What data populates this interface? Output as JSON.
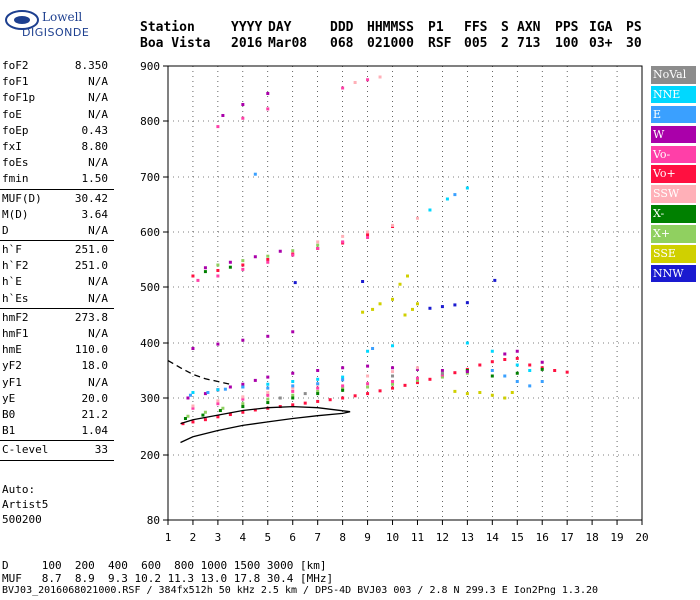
{
  "logo": {
    "line1": "Lowell",
    "line2": "DIGISONDE"
  },
  "header": {
    "labels": [
      "Station",
      "YYYY",
      "DAY",
      "DDD",
      "HHMMSS",
      "P1",
      "FFS",
      "S",
      "AXN",
      "PPS",
      "IGA",
      "PS"
    ],
    "values": [
      "Boa Vista",
      "2016",
      "Mar08",
      "068",
      "021000",
      "RSF",
      "005",
      "2",
      "713",
      "100",
      "03+",
      "30"
    ]
  },
  "params": {
    "group1": [
      {
        "name": "foF2",
        "value": "8.350"
      },
      {
        "name": "foF1",
        "value": "N/A"
      },
      {
        "name": "foF1p",
        "value": "N/A"
      },
      {
        "name": "foE",
        "value": "N/A"
      },
      {
        "name": "foEp",
        "value": "0.43"
      },
      {
        "name": "fxI",
        "value": "8.80"
      },
      {
        "name": "foEs",
        "value": "N/A"
      },
      {
        "name": "fmin",
        "value": "1.50"
      }
    ],
    "group2": [
      {
        "name": "MUF(D)",
        "value": "30.42"
      },
      {
        "name": "M(D)",
        "value": "3.64"
      },
      {
        "name": "D",
        "value": "N/A"
      }
    ],
    "group3": [
      {
        "name": "h`F",
        "value": "251.0"
      },
      {
        "name": "h`F2",
        "value": "251.0"
      },
      {
        "name": "h`E",
        "value": "N/A"
      },
      {
        "name": "h`Es",
        "value": "N/A"
      }
    ],
    "group4": [
      {
        "name": "hmF2",
        "value": "273.8"
      },
      {
        "name": "hmF1",
        "value": "N/A"
      },
      {
        "name": "hmE",
        "value": "110.0"
      },
      {
        "name": "yF2",
        "value": "18.0"
      },
      {
        "name": "yF1",
        "value": "N/A"
      },
      {
        "name": "yE",
        "value": "20.0"
      },
      {
        "name": "B0",
        "value": "21.2"
      },
      {
        "name": "B1",
        "value": "1.04"
      }
    ],
    "group5": [
      {
        "name": "C-level",
        "value": "33"
      }
    ]
  },
  "auto": {
    "line1": "Auto:",
    "line2": "Artist5",
    "line3": "500200"
  },
  "legend": [
    {
      "label": "NoVal",
      "color": "#8c8c8c"
    },
    {
      "label": "NNE",
      "color": "#00d8ff"
    },
    {
      "label": "E",
      "color": "#3aa0ff"
    },
    {
      "label": "W",
      "color": "#aa00aa"
    },
    {
      "label": "Vo-",
      "color": "#ff3fa8"
    },
    {
      "label": "Vo+",
      "color": "#ff1040"
    },
    {
      "label": "SSW",
      "color": "#ffb0b8"
    },
    {
      "label": "X-",
      "color": "#008000"
    },
    {
      "label": "X+",
      "color": "#90d060"
    },
    {
      "label": "SSE",
      "color": "#d0d000"
    },
    {
      "label": "NNW",
      "color": "#1a1ad0"
    }
  ],
  "footer": {
    "d_line": "D     100  200  400  600  800 1000 1500 3000 [km]",
    "muf_line": "MUF   8.7  8.9  9.3 10.2 11.3 13.0 17.8 30.4 [MHz]",
    "info_line": "BVJ03_2016068021000.RSF / 384fx512h 50 kHz 2.5 km / DPS-4D BVJ03 003 / 2.8 N 299.3 E Ion2Png 1.3.20"
  },
  "chart_data": {
    "type": "scatter",
    "title": "",
    "xlabel": "",
    "ylabel": "",
    "xlim": [
      1,
      20
    ],
    "ylim": [
      80,
      900
    ],
    "x_ticks": [
      1,
      2,
      3,
      4,
      5,
      6,
      7,
      8,
      9,
      10,
      11,
      12,
      13,
      14,
      15,
      16,
      17,
      18,
      19,
      20
    ],
    "y_ticks": [
      80,
      200,
      300,
      400,
      500,
      600,
      700,
      800,
      900
    ],
    "grid": true,
    "legend_position": "right",
    "series": [
      {
        "name": "Vo+",
        "color": "#ff1040",
        "points": [
          [
            1.6,
            255
          ],
          [
            2,
            258
          ],
          [
            2.5,
            262
          ],
          [
            3,
            267
          ],
          [
            3.5,
            271
          ],
          [
            4,
            275
          ],
          [
            4.5,
            279
          ],
          [
            5,
            282
          ],
          [
            5.5,
            285
          ],
          [
            6,
            288
          ],
          [
            6.5,
            291
          ],
          [
            7,
            294
          ],
          [
            7.5,
            297
          ],
          [
            8,
            300
          ],
          [
            8.5,
            304
          ],
          [
            9,
            308
          ],
          [
            9.5,
            313
          ],
          [
            10,
            318
          ],
          [
            10.5,
            323
          ],
          [
            11,
            328
          ],
          [
            11.5,
            334
          ],
          [
            12,
            340
          ],
          [
            12.5,
            346
          ],
          [
            13,
            352
          ],
          [
            13.5,
            360
          ],
          [
            14,
            366
          ],
          [
            14.5,
            370
          ],
          [
            15,
            372
          ],
          [
            15.5,
            360
          ],
          [
            16,
            355
          ],
          [
            16.5,
            350
          ],
          [
            17,
            347
          ],
          [
            2,
            520
          ],
          [
            3,
            530
          ],
          [
            4,
            540
          ],
          [
            5,
            550
          ],
          [
            6,
            560
          ],
          [
            7,
            570
          ],
          [
            8,
            580
          ],
          [
            9,
            595
          ],
          [
            10,
            610
          ]
        ]
      },
      {
        "name": "X+",
        "color": "#90d060",
        "points": [
          [
            1.8,
            268
          ],
          [
            2.5,
            275
          ],
          [
            3.2,
            282
          ],
          [
            4,
            290
          ],
          [
            5,
            298
          ],
          [
            6,
            305
          ],
          [
            7,
            312
          ],
          [
            8,
            318
          ],
          [
            9,
            320
          ],
          [
            10,
            325
          ],
          [
            11,
            332
          ],
          [
            12,
            338
          ],
          [
            13,
            345
          ],
          [
            3,
            540
          ],
          [
            4,
            548
          ],
          [
            5,
            556
          ],
          [
            6,
            566
          ],
          [
            7,
            576
          ]
        ]
      },
      {
        "name": "X-",
        "color": "#008000",
        "points": [
          [
            1.7,
            264
          ],
          [
            2.4,
            270
          ],
          [
            3.1,
            278
          ],
          [
            4,
            285
          ],
          [
            5,
            292
          ],
          [
            6,
            300
          ],
          [
            7,
            308
          ],
          [
            8,
            314
          ],
          [
            13,
            350
          ],
          [
            14,
            340
          ],
          [
            15,
            345
          ],
          [
            16,
            352
          ],
          [
            2.5,
            528
          ],
          [
            3.5,
            536
          ]
        ]
      },
      {
        "name": "W",
        "color": "#aa00aa",
        "points": [
          [
            1.8,
            300
          ],
          [
            2.5,
            308
          ],
          [
            3,
            315
          ],
          [
            3.5,
            320
          ],
          [
            4,
            325
          ],
          [
            4.5,
            332
          ],
          [
            5,
            338
          ],
          [
            6,
            345
          ],
          [
            7,
            350
          ],
          [
            8,
            355
          ],
          [
            9,
            358
          ],
          [
            10,
            355
          ],
          [
            11,
            352
          ],
          [
            12,
            350
          ],
          [
            13,
            348
          ],
          [
            2,
            390
          ],
          [
            3,
            398
          ],
          [
            4,
            405
          ],
          [
            5,
            412
          ],
          [
            6,
            420
          ],
          [
            2.5,
            535
          ],
          [
            3.5,
            545
          ],
          [
            4.5,
            555
          ],
          [
            5.5,
            565
          ],
          [
            3.2,
            810
          ],
          [
            4,
            830
          ],
          [
            5,
            850
          ],
          [
            14.5,
            380
          ],
          [
            15,
            385
          ],
          [
            16,
            365
          ]
        ]
      },
      {
        "name": "Vo-",
        "color": "#ff3fa8",
        "points": [
          [
            2,
            282
          ],
          [
            3,
            290
          ],
          [
            4,
            298
          ],
          [
            5,
            305
          ],
          [
            6,
            312
          ],
          [
            7,
            318
          ],
          [
            8,
            322
          ],
          [
            9,
            326
          ],
          [
            10,
            330
          ],
          [
            11,
            336
          ],
          [
            12,
            342
          ],
          [
            2.2,
            512
          ],
          [
            3,
            520
          ],
          [
            4,
            532
          ],
          [
            5,
            545
          ],
          [
            6,
            558
          ],
          [
            7,
            570
          ],
          [
            8,
            582
          ],
          [
            9,
            590
          ],
          [
            3,
            790
          ],
          [
            4,
            805
          ],
          [
            5,
            822
          ],
          [
            8,
            860
          ],
          [
            9,
            875
          ]
        ]
      },
      {
        "name": "SSW",
        "color": "#ffb0b8",
        "points": [
          [
            2,
            286
          ],
          [
            3,
            295
          ],
          [
            4,
            302
          ],
          [
            5,
            310
          ],
          [
            6,
            318
          ],
          [
            7,
            325
          ],
          [
            9,
            340
          ],
          [
            10,
            348
          ],
          [
            11,
            355
          ],
          [
            7,
            582
          ],
          [
            8,
            592
          ],
          [
            9,
            600
          ],
          [
            10,
            612
          ],
          [
            11,
            625
          ],
          [
            8.5,
            870
          ],
          [
            9.5,
            880
          ]
        ]
      },
      {
        "name": "NNE",
        "color": "#00d8ff",
        "points": [
          [
            2,
            310
          ],
          [
            3,
            315
          ],
          [
            4,
            320
          ],
          [
            5,
            325
          ],
          [
            6,
            330
          ],
          [
            7,
            334
          ],
          [
            8,
            338
          ],
          [
            9,
            385
          ],
          [
            10,
            395
          ],
          [
            13,
            400
          ],
          [
            14,
            385
          ],
          [
            15,
            360
          ],
          [
            15.5,
            350
          ],
          [
            11.5,
            640
          ],
          [
            12.2,
            660
          ],
          [
            13,
            680
          ]
        ]
      },
      {
        "name": "E",
        "color": "#3aa0ff",
        "points": [
          [
            1.9,
            305
          ],
          [
            2.6,
            310
          ],
          [
            3.3,
            316
          ],
          [
            4,
            320
          ],
          [
            5,
            318
          ],
          [
            6,
            322
          ],
          [
            7,
            326
          ],
          [
            8,
            333
          ],
          [
            9.2,
            390
          ],
          [
            14,
            350
          ],
          [
            14.5,
            340
          ],
          [
            15,
            330
          ],
          [
            15.5,
            322
          ],
          [
            16,
            330
          ],
          [
            4.5,
            705
          ],
          [
            12.5,
            668
          ]
        ]
      },
      {
        "name": "SSE",
        "color": "#d0d000",
        "points": [
          [
            8.8,
            455
          ],
          [
            9.2,
            460
          ],
          [
            9.5,
            470
          ],
          [
            10,
            478
          ],
          [
            10.3,
            505
          ],
          [
            10.6,
            520
          ],
          [
            10.8,
            460
          ],
          [
            10.5,
            450
          ],
          [
            11,
            470
          ],
          [
            13.5,
            310
          ],
          [
            14,
            305
          ],
          [
            14.5,
            300
          ],
          [
            14.8,
            310
          ],
          [
            12.5,
            312
          ],
          [
            13,
            308
          ]
        ]
      },
      {
        "name": "NNW",
        "color": "#1a1ad0",
        "points": [
          [
            11.5,
            462
          ],
          [
            12,
            465
          ],
          [
            12.5,
            468
          ],
          [
            13,
            472
          ],
          [
            14.1,
            512
          ],
          [
            6.1,
            508
          ],
          [
            8.8,
            510
          ]
        ]
      },
      {
        "name": "NoVal",
        "color": "#8c8c8c",
        "points": [
          [
            5.5,
            300
          ],
          [
            6.5,
            308
          ],
          [
            10,
            340
          ],
          [
            12,
            345
          ]
        ]
      }
    ],
    "curves": [
      {
        "name": "profile",
        "color": "#000000",
        "style": "solid",
        "points": [
          [
            1.5,
            222
          ],
          [
            2,
            232
          ],
          [
            3,
            243
          ],
          [
            4,
            252
          ],
          [
            5,
            258
          ],
          [
            6,
            264
          ],
          [
            7,
            269
          ],
          [
            8,
            273
          ],
          [
            8.3,
            276
          ],
          [
            7,
            283
          ],
          [
            6,
            285
          ],
          [
            5,
            283
          ],
          [
            4,
            278
          ],
          [
            3,
            270
          ],
          [
            2,
            262
          ],
          [
            1.5,
            255
          ]
        ]
      },
      {
        "name": "profile-dashed",
        "color": "#000000",
        "style": "dashed",
        "points": [
          [
            1,
            368
          ],
          [
            1.5,
            355
          ],
          [
            2,
            343
          ],
          [
            2.5,
            335
          ],
          [
            3,
            330
          ],
          [
            3.5,
            325
          ]
        ]
      }
    ]
  }
}
